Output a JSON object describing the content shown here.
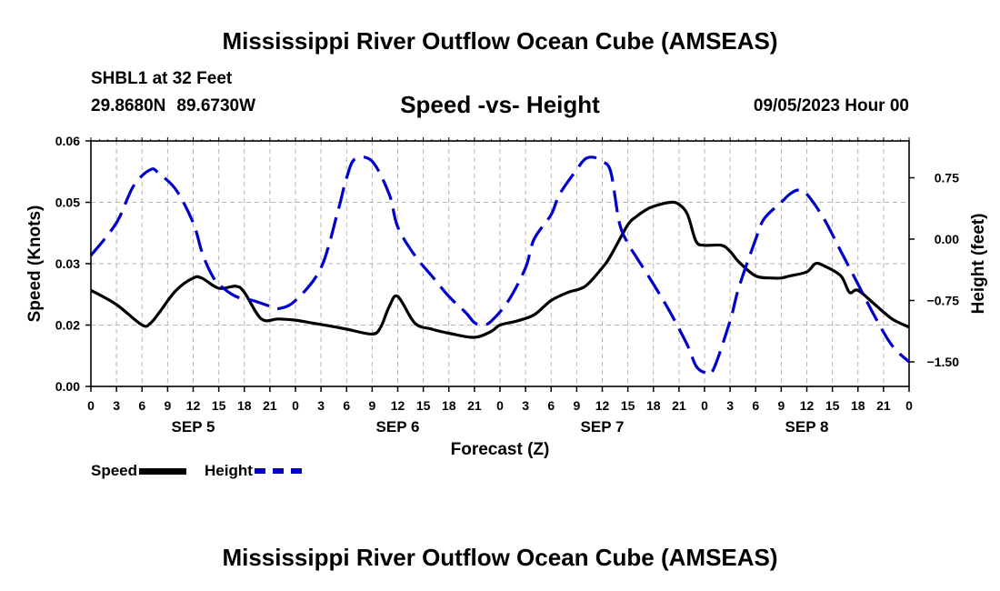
{
  "header": {
    "title": "Mississippi River Outflow Ocean Cube (AMSEAS)",
    "footer_title": "Mississippi River Outflow Ocean Cube (AMSEAS)",
    "station": "SHBL1 at 32 Feet",
    "lat": "29.8680N",
    "lon": "89.6730W",
    "subtitle": "Speed -vs- Height",
    "datetime": "09/05/2023 Hour 00"
  },
  "legend": {
    "speed_label": "Speed",
    "height_label": "Height"
  },
  "colors": {
    "speed": "#000000",
    "height": "#0000cd",
    "grid": "#b4b4b4"
  },
  "chart_data": {
    "type": "line",
    "title": "Speed -vs- Height",
    "xlabel": "Forecast (Z)",
    "ylabel": "Speed (Knots)",
    "y2label": "Height (feet)",
    "ylim": [
      0,
      0.06
    ],
    "y2lim": [
      -1.8,
      1.2
    ],
    "x_range_hours": [
      0,
      96
    ],
    "yticks": [
      "0.00",
      "0.02",
      "0.03",
      "0.05",
      "0.06"
    ],
    "ytick_values": [
      0,
      0.015,
      0.03,
      0.045,
      0.06
    ],
    "y2ticks": [
      "0.75",
      "0.00",
      "−0.75",
      "−1.50"
    ],
    "y2tick_values": [
      0.75,
      0,
      -0.75,
      -1.5
    ],
    "xticks": [
      "0",
      "3",
      "6",
      "9",
      "12",
      "15",
      "18",
      "21",
      "0",
      "3",
      "6",
      "9",
      "12",
      "15",
      "18",
      "21",
      "0",
      "3",
      "6",
      "9",
      "12",
      "15",
      "18",
      "21",
      "0",
      "3",
      "6",
      "9",
      "12",
      "15",
      "18",
      "21",
      "0"
    ],
    "day_labels": [
      "SEP 5",
      "SEP 6",
      "SEP 7",
      "SEP 8"
    ],
    "day_label_hours": [
      12,
      36,
      60,
      84
    ],
    "grid": true,
    "legend": "bottom-left",
    "series": [
      {
        "name": "Speed",
        "axis": "left",
        "color": "#000000",
        "x": [
          0,
          3,
          6,
          7,
          8,
          10,
          12,
          13,
          15,
          17,
          18,
          20,
          22,
          24,
          26,
          28,
          30,
          33,
          34,
          35,
          36,
          38,
          40,
          42,
          45,
          47,
          48,
          50,
          52,
          54,
          56,
          58,
          60,
          61,
          63,
          64,
          65,
          66,
          68,
          69,
          70,
          71,
          72,
          74,
          75,
          76,
          78,
          80,
          81,
          82,
          84,
          85,
          86,
          88,
          89,
          90,
          92,
          94,
          96
        ],
        "values": [
          0.0235,
          0.02,
          0.015,
          0.0155,
          0.018,
          0.0235,
          0.0265,
          0.0265,
          0.024,
          0.0245,
          0.023,
          0.0165,
          0.0165,
          0.0162,
          0.0155,
          0.0148,
          0.014,
          0.0128,
          0.0145,
          0.0195,
          0.022,
          0.0155,
          0.014,
          0.013,
          0.012,
          0.0135,
          0.015,
          0.016,
          0.0175,
          0.021,
          0.023,
          0.0245,
          0.029,
          0.032,
          0.0395,
          0.0415,
          0.043,
          0.044,
          0.045,
          0.0445,
          0.042,
          0.0355,
          0.0345,
          0.0345,
          0.033,
          0.0305,
          0.027,
          0.0265,
          0.0265,
          0.027,
          0.028,
          0.03,
          0.0295,
          0.027,
          0.023,
          0.0235,
          0.02,
          0.0165,
          0.0145
        ]
      },
      {
        "name": "Height",
        "axis": "right",
        "color": "#0000cd",
        "x": [
          0,
          3,
          5,
          7,
          8,
          10,
          12,
          13,
          14,
          15,
          17,
          19,
          21,
          22,
          24,
          27,
          29,
          30,
          31,
          33,
          35,
          36,
          38,
          40,
          42,
          44,
          45,
          46,
          47,
          49,
          51,
          52,
          54,
          55,
          57,
          58,
          59,
          60,
          61,
          62,
          63,
          64,
          66,
          68,
          70,
          71,
          72,
          73,
          75,
          76,
          78,
          79,
          81,
          82,
          83,
          84,
          86,
          88,
          90,
          92,
          94,
          96
        ],
        "values": [
          -0.2,
          0.2,
          0.65,
          0.85,
          0.8,
          0.6,
          0.2,
          -0.15,
          -0.4,
          -0.55,
          -0.7,
          -0.75,
          -0.82,
          -0.85,
          -0.75,
          -0.35,
          0.35,
          0.75,
          0.98,
          0.95,
          0.55,
          0.15,
          -0.2,
          -0.45,
          -0.7,
          -0.9,
          -1.02,
          -1.05,
          -1.0,
          -0.75,
          -0.35,
          0.0,
          0.3,
          0.55,
          0.85,
          0.98,
          1.0,
          0.95,
          0.82,
          0.2,
          -0.05,
          -0.22,
          -0.55,
          -0.9,
          -1.3,
          -1.55,
          -1.63,
          -1.6,
          -1.0,
          -0.6,
          0.0,
          0.25,
          0.45,
          0.55,
          0.6,
          0.55,
          0.25,
          -0.15,
          -0.55,
          -0.95,
          -1.3,
          -1.5
        ]
      }
    ]
  }
}
